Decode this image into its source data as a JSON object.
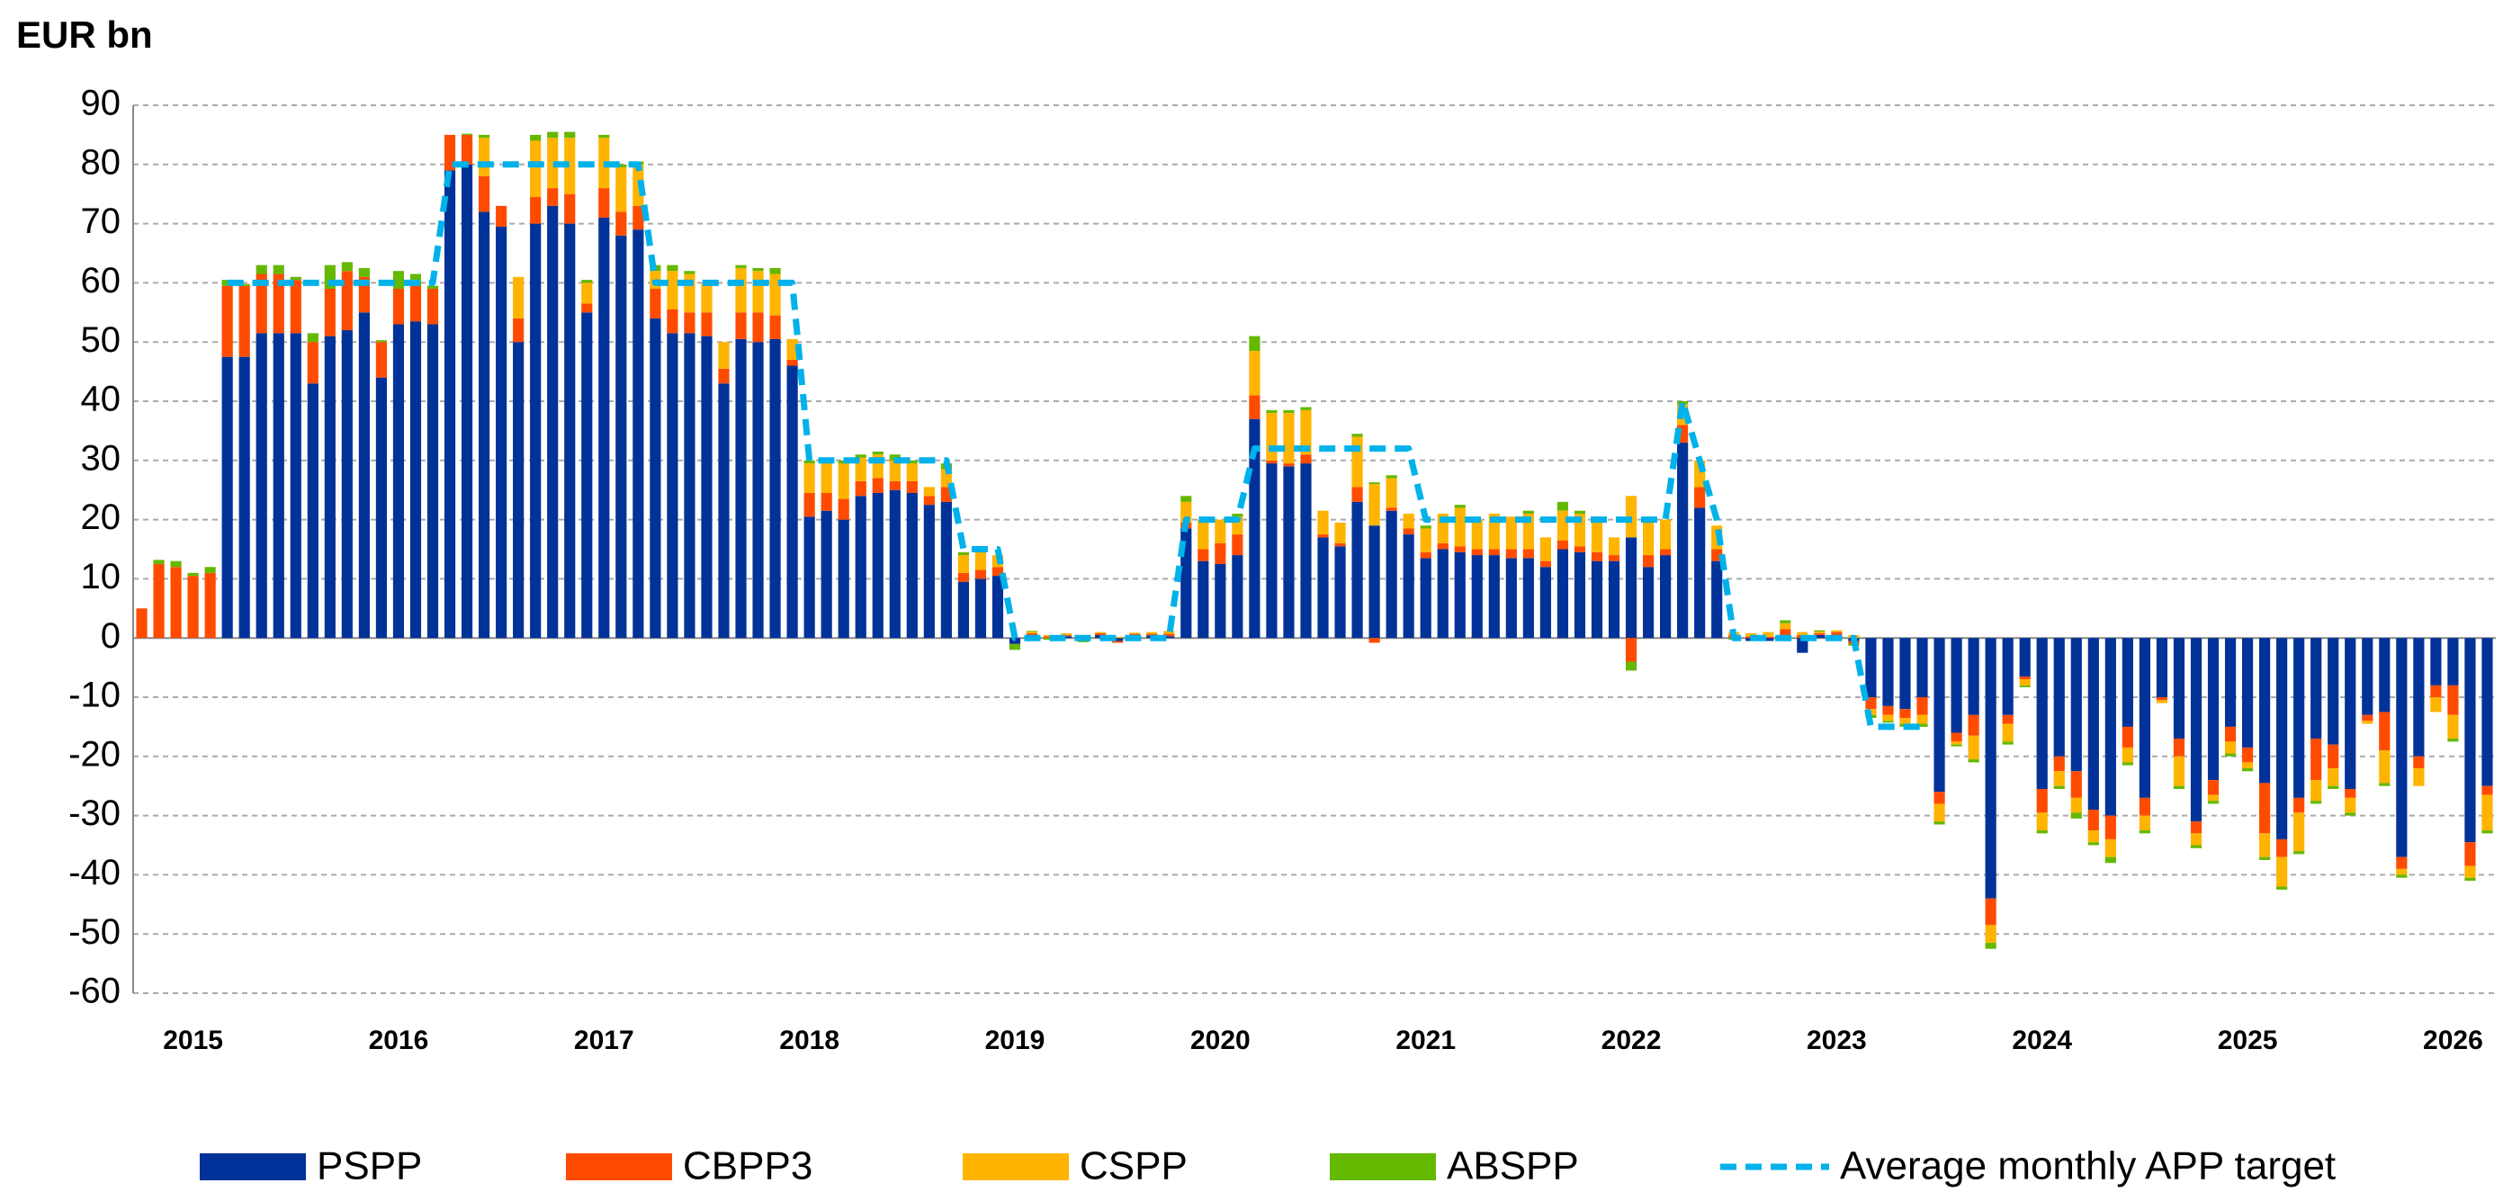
{
  "chart_data": {
    "type": "bar",
    "stacked": true,
    "y_label": "EUR bn",
    "categories": [
      null,
      null,
      null,
      "2015",
      null,
      null,
      null,
      null,
      null,
      null,
      null,
      null,
      null,
      null,
      null,
      "2016",
      null,
      null,
      null,
      null,
      null,
      null,
      null,
      null,
      null,
      null,
      null,
      "2017",
      null,
      null,
      null,
      null,
      null,
      null,
      null,
      null,
      null,
      null,
      null,
      "2018",
      null,
      null,
      null,
      null,
      null,
      null,
      null,
      null,
      null,
      null,
      null,
      "2019",
      null,
      null,
      null,
      null,
      null,
      null,
      null,
      null,
      null,
      null,
      null,
      "2020",
      null,
      null,
      null,
      null,
      null,
      null,
      null,
      null,
      null,
      null,
      null,
      "2021",
      null,
      null,
      null,
      null,
      null,
      null,
      null,
      null,
      null,
      null,
      null,
      "2022",
      null,
      null,
      null,
      null,
      null,
      null,
      null,
      null,
      null,
      null,
      null,
      "2023",
      null,
      null,
      null,
      null,
      null,
      null,
      null,
      null,
      null,
      null,
      null,
      "2024",
      null,
      null,
      null,
      null,
      null,
      null,
      null,
      null,
      null,
      null,
      null,
      "2025",
      null,
      null,
      null,
      null,
      null,
      null,
      null,
      null,
      null,
      null,
      null,
      "2026",
      null,
      null
    ],
    "series": [
      {
        "name": "PSPP",
        "type": "bar",
        "color": "#003299",
        "values": [
          0,
          0,
          0,
          0,
          0,
          47.5,
          47.5,
          51.5,
          51.5,
          51.5,
          43,
          51,
          52,
          55,
          44,
          53,
          53.5,
          53,
          79,
          80,
          72,
          69.5,
          50,
          70,
          73,
          70,
          55,
          71,
          68,
          69,
          54,
          51.5,
          51.5,
          51,
          43,
          50.5,
          50,
          50.5,
          46,
          20.5,
          21.5,
          20,
          24,
          24.5,
          25,
          24.5,
          22.5,
          23,
          9.5,
          10,
          10.5,
          -1,
          0.5,
          0,
          0.3,
          -0.5,
          0.5,
          -0.5,
          0.5,
          0.4,
          0.3,
          18.5,
          13,
          12.5,
          14,
          37,
          29.5,
          29,
          29.5,
          17,
          15.5,
          23,
          19,
          21.5,
          17.5,
          13.5,
          15,
          14.5,
          14,
          14,
          13.5,
          13.5,
          12,
          15,
          14.5,
          13,
          13,
          17,
          12,
          14,
          33,
          22,
          13,
          0,
          -0.5,
          -0.5,
          0.5,
          -2.5,
          0.5,
          0.5,
          -0.5,
          -10,
          -11.5,
          -12,
          -10,
          -26,
          -16,
          -13,
          -44,
          -13,
          -6.5,
          -25.5,
          -20,
          -22.5,
          -29,
          -30,
          -15,
          -27,
          -10,
          -17,
          -31,
          -24,
          -15,
          -18.5,
          -24.5,
          -34,
          -27,
          -17,
          -18,
          -25.5,
          -13,
          -12.5,
          -37,
          -20,
          -8,
          -8,
          -34.5,
          -25
        ]
      },
      {
        "name": "CBPP3",
        "type": "bar",
        "color": "#ff4b00",
        "values": [
          5,
          12.5,
          12,
          10.5,
          11,
          12,
          12,
          10,
          10,
          9,
          7,
          8,
          10,
          6,
          6,
          6,
          6,
          6,
          6,
          5,
          6,
          3.5,
          4,
          4.5,
          3,
          5,
          1.5,
          5,
          4,
          4,
          5,
          4,
          3.5,
          4,
          2.5,
          4.5,
          5,
          4,
          1,
          4,
          3,
          3.5,
          2.5,
          2.5,
          1.5,
          2,
          1.5,
          2.5,
          1.5,
          1.5,
          1.5,
          0,
          0.3,
          0.3,
          0.2,
          0.2,
          0.3,
          -0.3,
          0.2,
          0.3,
          0.4,
          1,
          2,
          3.5,
          3.5,
          4,
          0.5,
          0.5,
          1.5,
          0.5,
          0.5,
          2.5,
          -0.8,
          0.5,
          1,
          1,
          1,
          1,
          1,
          1,
          1.5,
          1.5,
          1,
          1.5,
          1,
          1.5,
          1,
          -4,
          2,
          1,
          3,
          3.5,
          2,
          0.5,
          0.3,
          0.2,
          1,
          0.5,
          0.3,
          0.5,
          -0.5,
          -2,
          -1.5,
          -1.5,
          -3,
          -2,
          -1.5,
          -3.5,
          -4.5,
          -1.5,
          -0.5,
          -4,
          -2.5,
          -4.5,
          -3.5,
          -4,
          -3.5,
          -3,
          -0.5,
          -3,
          -2,
          -2.5,
          -2.5,
          -2.5,
          -8.5,
          -3,
          -2.5,
          -7,
          -4,
          -1.5,
          -1,
          -6.5,
          -2,
          -2,
          -2,
          -5,
          -4,
          -1.5
        ]
      },
      {
        "name": "CSPP",
        "type": "bar",
        "color": "#ffb400",
        "values": [
          0,
          0,
          0,
          0,
          0,
          0,
          0,
          0,
          0,
          0,
          0,
          0,
          0,
          0,
          0,
          0,
          0,
          0,
          0,
          0,
          6.5,
          0,
          7,
          9.5,
          8.5,
          9.5,
          3.5,
          8.5,
          7.5,
          7,
          3,
          6.5,
          6.5,
          5,
          4.5,
          7.5,
          7,
          7,
          3.5,
          5,
          5,
          6,
          4,
          4,
          3.5,
          3,
          1.5,
          3,
          3,
          3,
          2,
          0,
          0.3,
          0.2,
          0.3,
          0.3,
          0.2,
          0.2,
          0.2,
          0.3,
          0.5,
          3.5,
          5,
          4,
          3,
          7.5,
          8,
          8.5,
          7.5,
          4,
          3.5,
          8.5,
          7,
          5,
          2.5,
          4,
          5,
          6.5,
          5,
          6,
          5.5,
          6,
          4,
          5,
          5.5,
          5.5,
          3,
          7,
          6,
          5,
          3.5,
          4.5,
          4,
          0.5,
          0.5,
          0.8,
          1,
          0.5,
          0.3,
          0.3,
          0.5,
          -1,
          -1,
          -1,
          -1.5,
          -3,
          -0.5,
          -4,
          -3,
          -3,
          -1,
          -3,
          -2.5,
          -2.5,
          -2,
          -3,
          -2.5,
          -2.5,
          -0.5,
          -5,
          -2,
          -1,
          -2,
          -1,
          -4,
          -5,
          -6.5,
          -3.5,
          -3,
          -2.5,
          -0.5,
          -5.5,
          -1,
          -3,
          -2.5,
          -4,
          -2,
          -6
        ]
      },
      {
        "name": "ABSPP",
        "type": "bar",
        "color": "#65b800",
        "values": [
          0,
          0.7,
          1,
          0.5,
          1,
          1,
          0.3,
          1.5,
          1.5,
          0.5,
          1.5,
          4,
          1.5,
          1.5,
          0.3,
          3,
          2,
          0.5,
          0,
          0.2,
          0.5,
          0,
          0,
          1,
          1,
          1,
          0.5,
          0.5,
          0.5,
          0.5,
          1,
          1,
          0.5,
          0,
          0,
          0.5,
          0.5,
          1,
          0,
          0.5,
          0.5,
          0.5,
          0.5,
          0.5,
          1,
          0.5,
          0,
          1,
          0.5,
          0.5,
          0,
          -1,
          0.1,
          -0.3,
          0,
          -0.2,
          0,
          0,
          0,
          0,
          0,
          1,
          0,
          0,
          0.5,
          2.5,
          0.5,
          0.5,
          0.5,
          0,
          0,
          0.5,
          0.3,
          0.5,
          0,
          0.5,
          0,
          0.5,
          0,
          0,
          0,
          0.5,
          0,
          1.5,
          0.5,
          0.5,
          0,
          -1.5,
          0,
          0,
          0.5,
          0,
          0,
          -0.3,
          0,
          0,
          0.5,
          0,
          0.2,
          -0.5,
          -0.3,
          -0.5,
          -0.3,
          -0.5,
          -0.5,
          -0.5,
          -0.3,
          -0.5,
          -1,
          -0.5,
          -0.3,
          -0.5,
          -0.5,
          -1,
          -0.5,
          -1,
          -0.5,
          -0.5,
          0,
          -0.5,
          -0.5,
          -0.5,
          -0.5,
          -0.5,
          -0.5,
          -0.5,
          -0.5,
          -0.5,
          -0.5,
          -0.5,
          0,
          -0.5,
          -0.5,
          0,
          0,
          -0.5,
          -0.5,
          -0.5
        ]
      },
      {
        "name": "Average monthly APP target",
        "type": "line",
        "dashed": true,
        "color": "#00b1ea",
        "values": [
          null,
          null,
          null,
          null,
          null,
          60,
          60,
          60,
          60,
          60,
          60,
          60,
          60,
          60,
          60,
          60,
          60,
          60,
          80,
          80,
          80,
          80,
          80,
          80,
          80,
          80,
          80,
          80,
          80,
          80,
          60,
          60,
          60,
          60,
          60,
          60,
          60,
          60,
          60,
          30,
          30,
          30,
          30,
          30,
          30,
          30,
          30,
          30,
          15,
          15,
          15,
          0,
          0,
          0,
          0,
          0,
          0,
          0,
          0,
          0,
          0,
          20,
          20,
          20,
          20,
          32,
          32,
          32,
          32,
          32,
          32,
          32,
          32,
          32,
          32,
          20,
          20,
          20,
          20,
          20,
          20,
          20,
          20,
          20,
          20,
          20,
          20,
          20,
          20,
          20,
          40,
          30,
          20,
          0,
          0,
          0,
          0,
          0,
          0,
          0,
          0,
          -15,
          -15,
          -15,
          -15,
          null,
          null,
          null,
          null,
          null,
          null,
          null,
          null,
          null,
          null,
          null,
          null,
          null,
          null,
          null,
          null,
          null,
          null,
          null,
          null,
          null,
          null,
          null,
          null,
          null,
          null,
          null,
          null,
          null,
          null,
          null,
          null,
          null
        ]
      }
    ],
    "ylim": [
      -60,
      90
    ],
    "yticks": [
      -60,
      -50,
      -40,
      -30,
      -20,
      -10,
      0,
      10,
      20,
      30,
      40,
      50,
      60,
      70,
      80,
      90
    ],
    "grid": true,
    "legend": "bottom"
  }
}
